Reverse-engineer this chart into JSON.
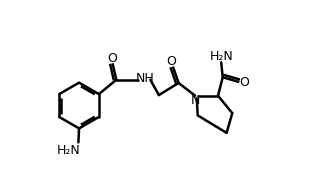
{
  "background_color": "#ffffff",
  "line_color": "#000000",
  "text_color": "#000000",
  "line_width": 1.8,
  "figsize": [
    3.36,
    1.92
  ],
  "dpi": 100,
  "xlim": [
    0,
    10
  ],
  "ylim": [
    0,
    6
  ]
}
